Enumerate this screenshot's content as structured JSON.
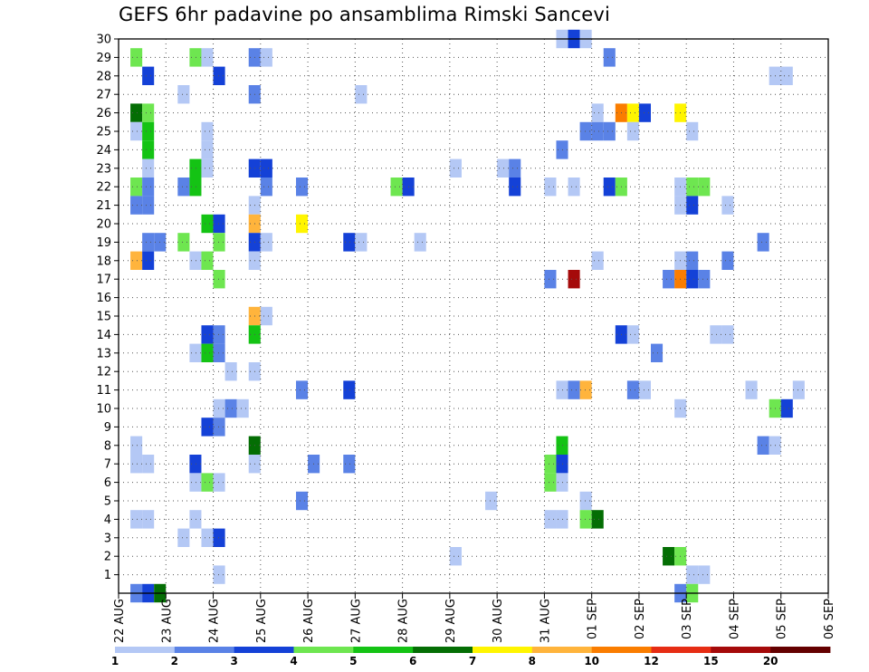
{
  "title": "GEFS 6hr padavine po ansamblima Rimski Sancevi",
  "chart_data": {
    "type": "heatmap",
    "title": "GEFS 6hr padavine po ansamblima Rimski Sancevi",
    "xlabel": "",
    "ylabel": "",
    "x_ticks": [
      "22 AUG",
      "23 AUG",
      "24 AUG",
      "25 AUG",
      "26 AUG",
      "27 AUG",
      "28 AUG",
      "29 AUG",
      "30 AUG",
      "31 AUG",
      "01 SEP",
      "02 SEP",
      "03 SEP",
      "04 SEP",
      "05 SEP",
      "06 SEP"
    ],
    "y_ticks": [
      "1",
      "2",
      "3",
      "4",
      "5",
      "6",
      "7",
      "8",
      "9",
      "10",
      "11",
      "12",
      "13",
      "14",
      "15",
      "16",
      "17",
      "18",
      "19",
      "20",
      "21",
      "22",
      "23",
      "24",
      "25",
      "26",
      "27",
      "28",
      "29",
      "30"
    ],
    "y_range": [
      0,
      30
    ],
    "steps_per_day": 4,
    "grid": true,
    "legend_placement": "bottom",
    "color_scale": {
      "labels": [
        "1",
        "2",
        "3",
        "4",
        "5",
        "6",
        "7",
        "8",
        "10",
        "12",
        "15",
        "20"
      ],
      "colors": [
        "#b4c8f5",
        "#5a82e6",
        "#1441d7",
        "#6ee650",
        "#14c314",
        "#046e04",
        "#fff500",
        "#ffb43c",
        "#fa7d00",
        "#e62d14",
        "#a50a0a",
        "#640000"
      ]
    },
    "cells": [
      {
        "t": 1,
        "m": 0,
        "c": 1
      },
      {
        "t": 2,
        "m": 0,
        "c": 2
      },
      {
        "t": 3,
        "m": 0,
        "c": 5
      },
      {
        "t": 1,
        "m": 29,
        "c": 3
      },
      {
        "t": 2,
        "m": 28,
        "c": 2
      },
      {
        "t": 1,
        "m": 26,
        "c": 5
      },
      {
        "t": 2,
        "m": 26,
        "c": 3
      },
      {
        "t": 1,
        "m": 25,
        "c": 0
      },
      {
        "t": 2,
        "m": 25,
        "c": 4
      },
      {
        "t": 2,
        "m": 24,
        "c": 4
      },
      {
        "t": 2,
        "m": 23,
        "c": 0
      },
      {
        "t": 1,
        "m": 22,
        "c": 3
      },
      {
        "t": 2,
        "m": 22,
        "c": 1
      },
      {
        "t": 1,
        "m": 21,
        "c": 1
      },
      {
        "t": 2,
        "m": 21,
        "c": 1
      },
      {
        "t": 2,
        "m": 19,
        "c": 1
      },
      {
        "t": 3,
        "m": 19,
        "c": 1
      },
      {
        "t": 1,
        "m": 18,
        "c": 7
      },
      {
        "t": 2,
        "m": 18,
        "c": 2
      },
      {
        "t": 1,
        "m": 8,
        "c": 0
      },
      {
        "t": 1,
        "m": 7,
        "c": 0
      },
      {
        "t": 2,
        "m": 7,
        "c": 0
      },
      {
        "t": 1,
        "m": 4,
        "c": 0
      },
      {
        "t": 2,
        "m": 4,
        "c": 0
      },
      {
        "t": 6,
        "m": 29,
        "c": 3
      },
      {
        "t": 7,
        "m": 29,
        "c": 0
      },
      {
        "t": 8,
        "m": 28,
        "c": 2
      },
      {
        "t": 5,
        "m": 27,
        "c": 0
      },
      {
        "t": 7,
        "m": 25,
        "c": 0
      },
      {
        "t": 7,
        "m": 24,
        "c": 0
      },
      {
        "t": 6,
        "m": 23,
        "c": 4
      },
      {
        "t": 7,
        "m": 23,
        "c": 0
      },
      {
        "t": 5,
        "m": 22,
        "c": 1
      },
      {
        "t": 6,
        "m": 22,
        "c": 4
      },
      {
        "t": 7,
        "m": 20,
        "c": 4
      },
      {
        "t": 8,
        "m": 20,
        "c": 2
      },
      {
        "t": 5,
        "m": 19,
        "c": 3
      },
      {
        "t": 8,
        "m": 19,
        "c": 3
      },
      {
        "t": 6,
        "m": 18,
        "c": 0
      },
      {
        "t": 7,
        "m": 18,
        "c": 3
      },
      {
        "t": 8,
        "m": 17,
        "c": 3
      },
      {
        "t": 7,
        "m": 14,
        "c": 2
      },
      {
        "t": 8,
        "m": 14,
        "c": 1
      },
      {
        "t": 7,
        "m": 13,
        "c": 4
      },
      {
        "t": 8,
        "m": 13,
        "c": 1
      },
      {
        "t": 6,
        "m": 13,
        "c": 0
      },
      {
        "t": 9,
        "m": 12,
        "c": 0
      },
      {
        "t": 8,
        "m": 10,
        "c": 0
      },
      {
        "t": 9,
        "m": 10,
        "c": 1
      },
      {
        "t": 10,
        "m": 10,
        "c": 0
      },
      {
        "t": 7,
        "m": 9,
        "c": 2
      },
      {
        "t": 8,
        "m": 9,
        "c": 1
      },
      {
        "t": 6,
        "m": 7,
        "c": 2
      },
      {
        "t": 6,
        "m": 6,
        "c": 0
      },
      {
        "t": 7,
        "m": 6,
        "c": 3
      },
      {
        "t": 8,
        "m": 6,
        "c": 0
      },
      {
        "t": 6,
        "m": 4,
        "c": 0
      },
      {
        "t": 5,
        "m": 3,
        "c": 0
      },
      {
        "t": 7,
        "m": 3,
        "c": 0
      },
      {
        "t": 8,
        "m": 3,
        "c": 2
      },
      {
        "t": 8,
        "m": 1,
        "c": 0
      },
      {
        "t": 11,
        "m": 29,
        "c": 1
      },
      {
        "t": 12,
        "m": 29,
        "c": 0
      },
      {
        "t": 11,
        "m": 27,
        "c": 1
      },
      {
        "t": 11,
        "m": 23,
        "c": 2
      },
      {
        "t": 12,
        "m": 23,
        "c": 2
      },
      {
        "t": 12,
        "m": 22,
        "c": 1
      },
      {
        "t": 11,
        "m": 21,
        "c": 0
      },
      {
        "t": 11,
        "m": 20,
        "c": 7
      },
      {
        "t": 11,
        "m": 19,
        "c": 2
      },
      {
        "t": 12,
        "m": 19,
        "c": 0
      },
      {
        "t": 11,
        "m": 18,
        "c": 0
      },
      {
        "t": 11,
        "m": 15,
        "c": 7
      },
      {
        "t": 12,
        "m": 15,
        "c": 0
      },
      {
        "t": 11,
        "m": 14,
        "c": 4
      },
      {
        "t": 11,
        "m": 12,
        "c": 0
      },
      {
        "t": 11,
        "m": 8,
        "c": 5
      },
      {
        "t": 11,
        "m": 7,
        "c": 0
      },
      {
        "t": 15,
        "m": 22,
        "c": 1
      },
      {
        "t": 15,
        "m": 20,
        "c": 6
      },
      {
        "t": 15,
        "m": 11,
        "c": 1
      },
      {
        "t": 16,
        "m": 7,
        "c": 1
      },
      {
        "t": 15,
        "m": 5,
        "c": 1
      },
      {
        "t": 20,
        "m": 27,
        "c": 0
      },
      {
        "t": 19,
        "m": 19,
        "c": 2
      },
      {
        "t": 20,
        "m": 19,
        "c": 0
      },
      {
        "t": 19,
        "m": 11,
        "c": 2
      },
      {
        "t": 19,
        "m": 7,
        "c": 1
      },
      {
        "t": 23,
        "m": 22,
        "c": 3
      },
      {
        "t": 24,
        "m": 22,
        "c": 2
      },
      {
        "t": 25,
        "m": 19,
        "c": 0
      },
      {
        "t": 28,
        "m": 23,
        "c": 0
      },
      {
        "t": 28,
        "m": 2,
        "c": 0
      },
      {
        "t": 32,
        "m": 23,
        "c": 0
      },
      {
        "t": 33,
        "m": 23,
        "c": 1
      },
      {
        "t": 33,
        "m": 22,
        "c": 2
      },
      {
        "t": 31,
        "m": 5,
        "c": 0
      },
      {
        "t": 37,
        "m": 30,
        "c": 0
      },
      {
        "t": 38,
        "m": 30,
        "c": 2
      },
      {
        "t": 39,
        "m": 30,
        "c": 0
      },
      {
        "t": 37,
        "m": 24,
        "c": 1
      },
      {
        "t": 36,
        "m": 22,
        "c": 0
      },
      {
        "t": 38,
        "m": 22,
        "c": 0
      },
      {
        "t": 36,
        "m": 17,
        "c": 1
      },
      {
        "t": 38,
        "m": 17,
        "c": 10
      },
      {
        "t": 37,
        "m": 11,
        "c": 0
      },
      {
        "t": 38,
        "m": 11,
        "c": 1
      },
      {
        "t": 39,
        "m": 11,
        "c": 7
      },
      {
        "t": 37,
        "m": 8,
        "c": 4
      },
      {
        "t": 36,
        "m": 7,
        "c": 3
      },
      {
        "t": 37,
        "m": 7,
        "c": 2
      },
      {
        "t": 36,
        "m": 6,
        "c": 3
      },
      {
        "t": 37,
        "m": 6,
        "c": 0
      },
      {
        "t": 39,
        "m": 5,
        "c": 0
      },
      {
        "t": 36,
        "m": 4,
        "c": 0
      },
      {
        "t": 37,
        "m": 4,
        "c": 0
      },
      {
        "t": 39,
        "m": 4,
        "c": 3
      },
      {
        "t": 40,
        "m": 4,
        "c": 5
      },
      {
        "t": 41,
        "m": 29,
        "c": 1
      },
      {
        "t": 40,
        "m": 26,
        "c": 0
      },
      {
        "t": 39,
        "m": 25,
        "c": 1
      },
      {
        "t": 40,
        "m": 25,
        "c": 1
      },
      {
        "t": 41,
        "m": 25,
        "c": 1
      },
      {
        "t": 42,
        "m": 26,
        "c": 8
      },
      {
        "t": 43,
        "m": 26,
        "c": 6
      },
      {
        "t": 44,
        "m": 26,
        "c": 2
      },
      {
        "t": 43,
        "m": 25,
        "c": 0
      },
      {
        "t": 41,
        "m": 22,
        "c": 2
      },
      {
        "t": 42,
        "m": 22,
        "c": 3
      },
      {
        "t": 40,
        "m": 18,
        "c": 0
      },
      {
        "t": 42,
        "m": 14,
        "c": 2
      },
      {
        "t": 43,
        "m": 14,
        "c": 0
      },
      {
        "t": 43,
        "m": 11,
        "c": 1
      },
      {
        "t": 44,
        "m": 11,
        "c": 0
      },
      {
        "t": 45,
        "m": 13,
        "c": 1
      },
      {
        "t": 47,
        "m": 26,
        "c": 6
      },
      {
        "t": 48,
        "m": 25,
        "c": 0
      },
      {
        "t": 47,
        "m": 22,
        "c": 0
      },
      {
        "t": 48,
        "m": 22,
        "c": 3
      },
      {
        "t": 49,
        "m": 22,
        "c": 3
      },
      {
        "t": 47,
        "m": 21,
        "c": 0
      },
      {
        "t": 48,
        "m": 21,
        "c": 2
      },
      {
        "t": 47,
        "m": 18,
        "c": 0
      },
      {
        "t": 48,
        "m": 18,
        "c": 1
      },
      {
        "t": 46,
        "m": 17,
        "c": 1
      },
      {
        "t": 47,
        "m": 17,
        "c": 8
      },
      {
        "t": 48,
        "m": 17,
        "c": 2
      },
      {
        "t": 49,
        "m": 17,
        "c": 1
      },
      {
        "t": 47,
        "m": 10,
        "c": 0
      },
      {
        "t": 46,
        "m": 2,
        "c": 5
      },
      {
        "t": 47,
        "m": 2,
        "c": 3
      },
      {
        "t": 48,
        "m": 1,
        "c": 0
      },
      {
        "t": 49,
        "m": 1,
        "c": 0
      },
      {
        "t": 47,
        "m": 0,
        "c": 1
      },
      {
        "t": 48,
        "m": 0,
        "c": 3
      },
      {
        "t": 51,
        "m": 21,
        "c": 0
      },
      {
        "t": 51,
        "m": 18,
        "c": 1
      },
      {
        "t": 50,
        "m": 14,
        "c": 0
      },
      {
        "t": 51,
        "m": 14,
        "c": 0
      },
      {
        "t": 53,
        "m": 11,
        "c": 0
      },
      {
        "t": 55,
        "m": 28,
        "c": 0
      },
      {
        "t": 56,
        "m": 28,
        "c": 0
      },
      {
        "t": 54,
        "m": 19,
        "c": 1
      },
      {
        "t": 54,
        "m": 8,
        "c": 1
      },
      {
        "t": 55,
        "m": 8,
        "c": 0
      },
      {
        "t": 55,
        "m": 10,
        "c": 3
      },
      {
        "t": 56,
        "m": 10,
        "c": 2
      },
      {
        "t": 57,
        "m": 11,
        "c": 0
      }
    ]
  }
}
